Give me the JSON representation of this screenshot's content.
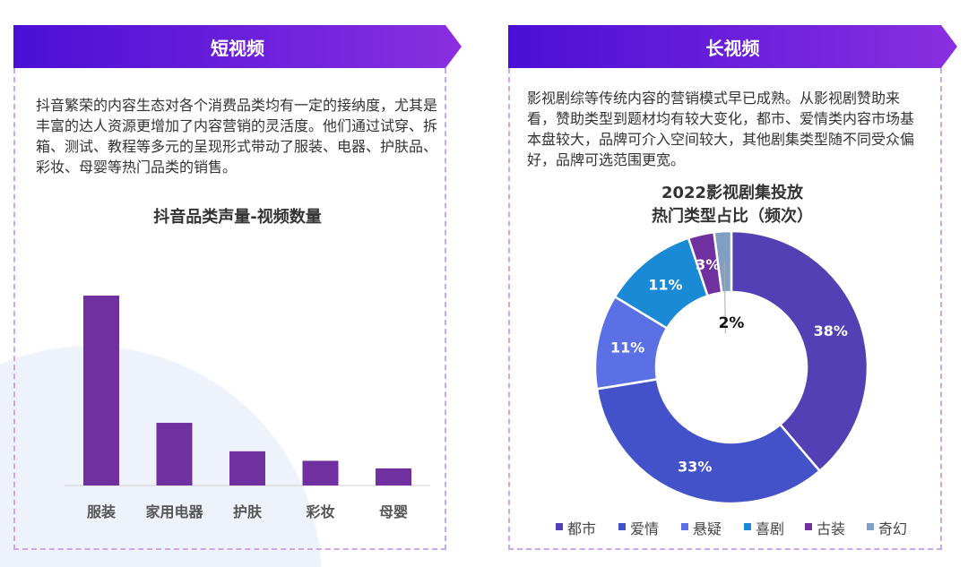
{
  "left": {
    "header": "短视频",
    "paragraph": "抖音繁荣的内容生态对各个消费品类均有一定的接纳度，尤其是丰富的达人资源更增加了内容营销的灵活度。他们通过试穿、拆箱、测试、教程等多元的呈现形式带动了服装、电器、护肤品、彩妆、母婴等热门品类的销售。"
  },
  "right": {
    "header": "长视频",
    "paragraph": "影视剧综等传统内容的营销模式早已成熟。从影视剧赞助来看，赞助类型到题材均有较大变化，都市、爱情类内容市场基本盘较大，品牌可介入空间较大，其他剧集类型随不同受众偏好，品牌可选范围更宽。"
  },
  "chart_data": [
    {
      "type": "bar",
      "title": "抖音品类声量-视频数量",
      "categories": [
        "服装",
        "家用电器",
        "护肤",
        "彩妆",
        "母婴"
      ],
      "values": [
        100,
        33,
        18,
        13,
        9
      ],
      "color": "#7030a0",
      "axis_values_shown": false
    },
    {
      "type": "pie",
      "donut": true,
      "title": [
        "2022影视剧集投放",
        "热门类型占比（频次）"
      ],
      "categories": [
        "都市",
        "爱情",
        "悬疑",
        "喜剧",
        "古装",
        "奇幻"
      ],
      "values": [
        38,
        33,
        11,
        11,
        3,
        2
      ],
      "labels": [
        "38%",
        "33%",
        "11%",
        "11%",
        "3%",
        "2%"
      ],
      "colors": [
        "#5440b5",
        "#4352c8",
        "#5a70e4",
        "#1a8ad6",
        "#7030a0",
        "#7f9fc4"
      ],
      "legend": "bottom"
    }
  ]
}
